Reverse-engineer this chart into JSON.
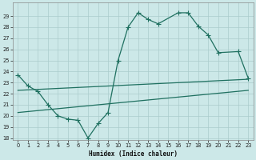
{
  "xlabel": "Humidex (Indice chaleur)",
  "bg_color": "#cce8e8",
  "grid_color": "#aacccc",
  "line_color": "#1f7060",
  "xlim": [
    -0.5,
    23.5
  ],
  "ylim": [
    17.8,
    30.2
  ],
  "yticks": [
    18,
    19,
    20,
    21,
    22,
    23,
    24,
    25,
    26,
    27,
    28,
    29
  ],
  "xticks": [
    0,
    1,
    2,
    3,
    4,
    5,
    6,
    7,
    8,
    9,
    10,
    11,
    12,
    13,
    14,
    15,
    16,
    17,
    18,
    19,
    20,
    21,
    22,
    23
  ],
  "zigzag": {
    "x": [
      0,
      1,
      2,
      3,
      4,
      5,
      6,
      7,
      8,
      9,
      10,
      11,
      12,
      13,
      14,
      16,
      17,
      18,
      19,
      20,
      22,
      23
    ],
    "y": [
      23.7,
      22.7,
      22.2,
      21.0,
      20.0,
      19.7,
      19.6,
      18.0,
      19.3,
      20.3,
      25.0,
      28.0,
      29.3,
      28.7,
      28.3,
      29.3,
      29.3,
      28.1,
      27.3,
      25.7,
      25.8,
      23.4
    ]
  },
  "trend_upper": {
    "x": [
      0,
      23
    ],
    "y": [
      22.3,
      23.3
    ]
  },
  "trend_lower": {
    "x": [
      0,
      23
    ],
    "y": [
      20.3,
      22.3
    ]
  }
}
